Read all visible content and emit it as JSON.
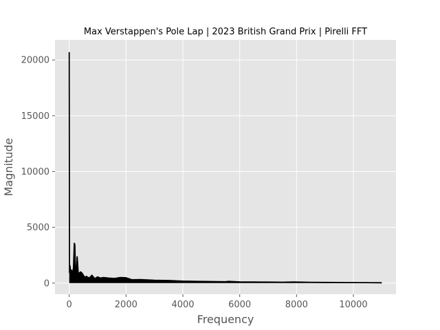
{
  "chart_data": {
    "type": "line",
    "title": "Max Verstappen's Pole Lap | 2023 British Grand Prix | Pirelli FFT",
    "xlabel": "Frequency",
    "ylabel": "Magnitude",
    "xlim": [
      -500,
      11500
    ],
    "ylim": [
      -1000,
      21800
    ],
    "xticks": [
      0,
      2000,
      4000,
      6000,
      8000,
      10000
    ],
    "yticks": [
      0,
      5000,
      10000,
      15000,
      20000
    ],
    "grid": true,
    "legend": "none",
    "colors": {
      "background": "#e5e5e5",
      "grid": "#ffffff",
      "line": "#000000",
      "tick": "#555555"
    },
    "series": [
      {
        "values_description_free": true,
        "x": [
          0,
          10,
          25,
          40,
          60,
          80,
          100,
          120,
          150,
          180,
          200,
          220,
          250,
          280,
          300,
          320,
          350,
          400,
          450,
          500,
          550,
          600,
          700,
          800,
          900,
          1000,
          1100,
          1200,
          1400,
          1600,
          1800,
          2000,
          2200,
          2500,
          3000,
          3500,
          4000,
          4500,
          5000,
          5500,
          5600,
          6000,
          6500,
          7000,
          7500,
          7900,
          8500,
          9000,
          9500,
          10000,
          10500,
          11000
        ],
        "y": [
          20700,
          900,
          1600,
          1300,
          700,
          1200,
          600,
          900,
          1400,
          3600,
          3400,
          1100,
          900,
          2400,
          1600,
          700,
          900,
          1000,
          900,
          700,
          500,
          600,
          450,
          700,
          400,
          550,
          450,
          500,
          450,
          420,
          500,
          480,
          300,
          320,
          250,
          230,
          180,
          150,
          140,
          120,
          150,
          110,
          100,
          90,
          80,
          95,
          70,
          60,
          55,
          50,
          40,
          30
        ]
      }
    ]
  }
}
